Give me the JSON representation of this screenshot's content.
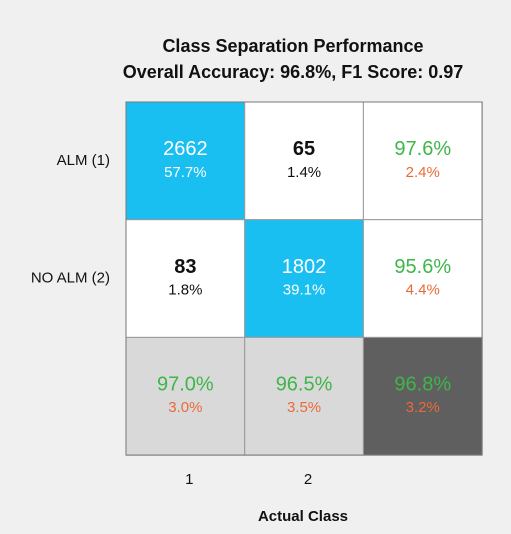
{
  "chart_data": {
    "type": "confusion_matrix",
    "title": "Class Separation Performance",
    "subtitle": "Overall Accuracy: 96.8%, F1 Score: 0.97",
    "row_labels": [
      "ALM (1)",
      "NO ALM (2)"
    ],
    "column_labels": [
      "1",
      "2"
    ],
    "x_label": "Actual Class",
    "cells": [
      [
        {
          "top": "2662",
          "bottom": "57.7%",
          "fill": "#19bff0",
          "top_color": "#ffffff",
          "bottom_color": "#ffffff",
          "top_bold": false
        },
        {
          "top": "65",
          "bottom": "1.4%",
          "fill": "#ffffff",
          "top_color": "#111111",
          "bottom_color": "#111111",
          "top_bold": true
        },
        {
          "top": "97.6%",
          "bottom": "2.4%",
          "fill": "#ffffff",
          "top_color": "#3fb54a",
          "bottom_color": "#ea6a3a",
          "top_bold": false
        }
      ],
      [
        {
          "top": "83",
          "bottom": "1.8%",
          "fill": "#ffffff",
          "top_color": "#111111",
          "bottom_color": "#111111",
          "top_bold": true
        },
        {
          "top": "1802",
          "bottom": "39.1%",
          "fill": "#19bff0",
          "top_color": "#ffffff",
          "bottom_color": "#ffffff",
          "top_bold": false
        },
        {
          "top": "95.6%",
          "bottom": "4.4%",
          "fill": "#ffffff",
          "top_color": "#3fb54a",
          "bottom_color": "#ea6a3a",
          "top_bold": false
        }
      ],
      [
        {
          "top": "97.0%",
          "bottom": "3.0%",
          "fill": "#d9d9d9",
          "top_color": "#3fb54a",
          "bottom_color": "#ea6a3a",
          "top_bold": false
        },
        {
          "top": "96.5%",
          "bottom": "3.5%",
          "fill": "#d9d9d9",
          "top_color": "#3fb54a",
          "bottom_color": "#ea6a3a",
          "top_bold": false
        },
        {
          "top": "96.8%",
          "bottom": "3.2%",
          "fill": "#5f5f5f",
          "top_color": "#3fb54a",
          "bottom_color": "#ea6a3a",
          "top_bold": false
        }
      ]
    ]
  }
}
